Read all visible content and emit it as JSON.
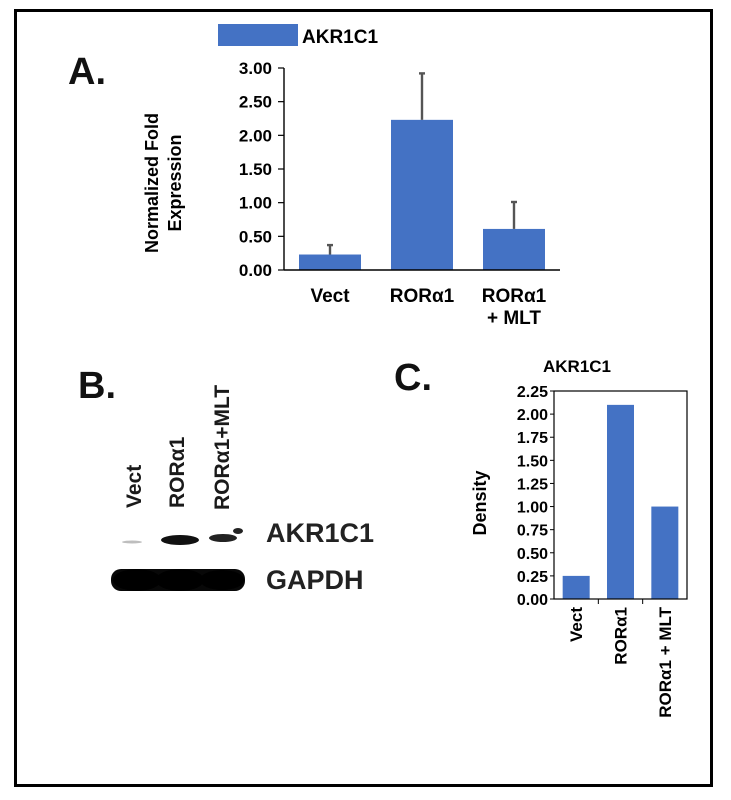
{
  "panels": {
    "a": "A.",
    "b": "B.",
    "c": "C."
  },
  "chart_data": [
    {
      "id": "A",
      "type": "bar",
      "legend": "AKR1C1",
      "legend_placement": "top",
      "categories": [
        "Vect",
        "RORα1",
        "RORα1\n+ MLT"
      ],
      "series": [
        {
          "name": "AKR1C1",
          "values": [
            0.23,
            2.23,
            0.61
          ],
          "errors": [
            0.14,
            0.69,
            0.4
          ],
          "color": "#4472C4"
        }
      ],
      "ylabel": "Normalized Fold\nExpression",
      "ylim": [
        0,
        3.0
      ],
      "yticks": [
        "0.00",
        "0.50",
        "1.00",
        "1.50",
        "2.00",
        "2.50",
        "3.00"
      ],
      "grid": false
    },
    {
      "id": "C",
      "type": "bar",
      "title": "AKR1C1",
      "categories": [
        "Vect",
        "RORα1",
        "RORα1 + MLT"
      ],
      "values": [
        0.25,
        2.1,
        1.0
      ],
      "color": "#4472C4",
      "ylabel": "Density",
      "ylim": [
        0,
        2.25
      ],
      "yticks": [
        "0.00",
        "0.25",
        "0.50",
        "0.75",
        "1.00",
        "1.25",
        "1.50",
        "1.75",
        "2.00",
        "2.25"
      ],
      "grid": false
    }
  ],
  "blot": {
    "lanes": [
      "Vect",
      "RORα1",
      "RORα1+MLT"
    ],
    "bands": [
      "AKR1C1",
      "GAPDH"
    ]
  }
}
